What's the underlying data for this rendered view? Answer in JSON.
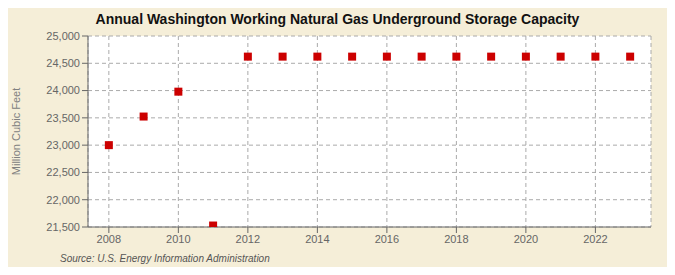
{
  "chart_data": {
    "type": "scatter",
    "title": "Annual Washington Working Natural Gas Underground Storage Capacity",
    "y_label": "Million Cubic Feet",
    "source": "Source: U.S. Energy Information Administration",
    "x": [
      2008,
      2009,
      2010,
      2011,
      2012,
      2013,
      2014,
      2015,
      2016,
      2017,
      2018,
      2019,
      2020,
      2021,
      2022,
      2023
    ],
    "values": [
      23000,
      23524,
      23980,
      21527,
      24622,
      24622,
      24622,
      24622,
      24622,
      24622,
      24622,
      24622,
      24622,
      24622,
      24622,
      24622
    ],
    "color": "#cc0000",
    "marker": "square",
    "grid": true,
    "xlim": [
      2007.4,
      2023.6
    ],
    "xticks": [
      2008,
      2010,
      2012,
      2014,
      2016,
      2018,
      2020,
      2022
    ],
    "ylim": [
      21500,
      25000
    ],
    "yticks": [
      {
        "value": 21500,
        "label": "21,500"
      },
      {
        "value": 22000,
        "label": "22,000"
      },
      {
        "value": 22500,
        "label": "22,500"
      },
      {
        "value": 23000,
        "label": "23,000"
      },
      {
        "value": 23500,
        "label": "23,500"
      },
      {
        "value": 24000,
        "label": "24,000"
      },
      {
        "value": 24500,
        "label": "24,500"
      },
      {
        "value": 25000,
        "label": "25,000"
      }
    ]
  }
}
